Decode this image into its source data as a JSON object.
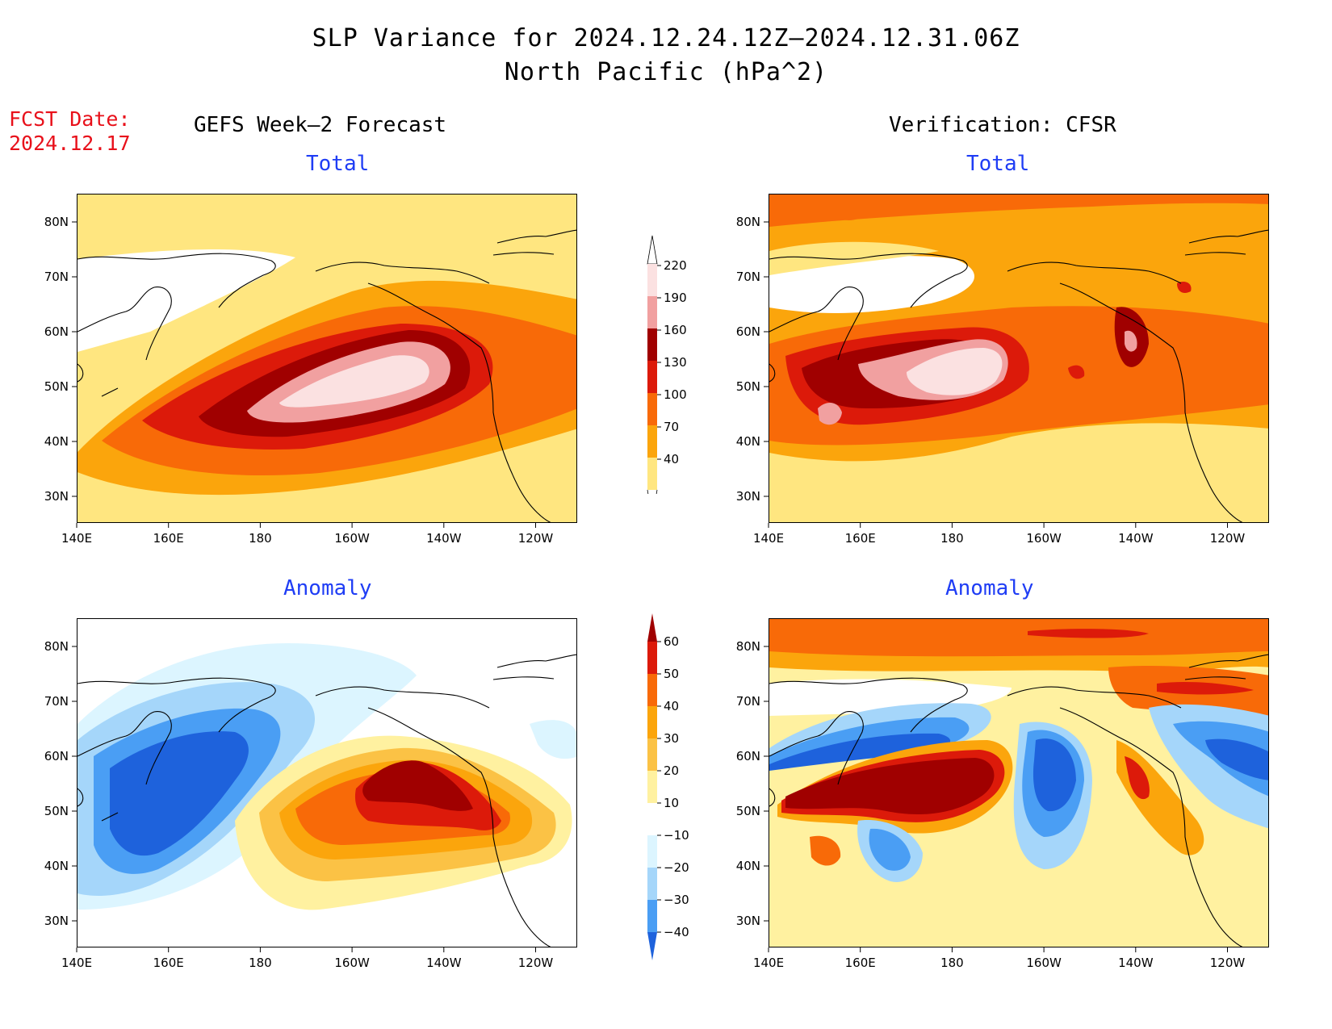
{
  "title": {
    "line1": "SLP Variance for 2024.12.24.12Z–2024.12.31.06Z",
    "line2": "North Pacific (hPa^2)"
  },
  "forecast_date": {
    "label": "FCST Date:",
    "value": "2024.12.17"
  },
  "columns": {
    "left": "GEFS Week–2 Forecast",
    "right": "Verification: CFSR"
  },
  "panels": {
    "total_label": "Total",
    "anomaly_label": "Anomaly"
  },
  "axes": {
    "lon_ticks": [
      "140E",
      "160E",
      "180",
      "160W",
      "140W",
      "120W"
    ],
    "lat_ticks": [
      "80N",
      "70N",
      "60N",
      "50N",
      "40N",
      "30N"
    ]
  },
  "colorbars": {
    "total": {
      "levels": [
        "220",
        "190",
        "160",
        "130",
        "100",
        "70",
        "40"
      ],
      "colors": [
        "#fbe1e1",
        "#f1a0a0",
        "#a00000",
        "#dc1a0a",
        "#f86a08",
        "#fba50c",
        "#ffe680"
      ]
    },
    "anomaly": {
      "levels": [
        "60",
        "50",
        "40",
        "30",
        "20",
        "10",
        "−10",
        "−20",
        "−30",
        "−40"
      ],
      "colors": [
        "#a00000",
        "#dc1a0a",
        "#f86a08",
        "#fba50c",
        "#fbc245",
        "#fff1a0",
        "#ffffff",
        "#dcf5ff",
        "#a5d6fa",
        "#4a9ef4",
        "#1e62dc"
      ]
    }
  }
}
